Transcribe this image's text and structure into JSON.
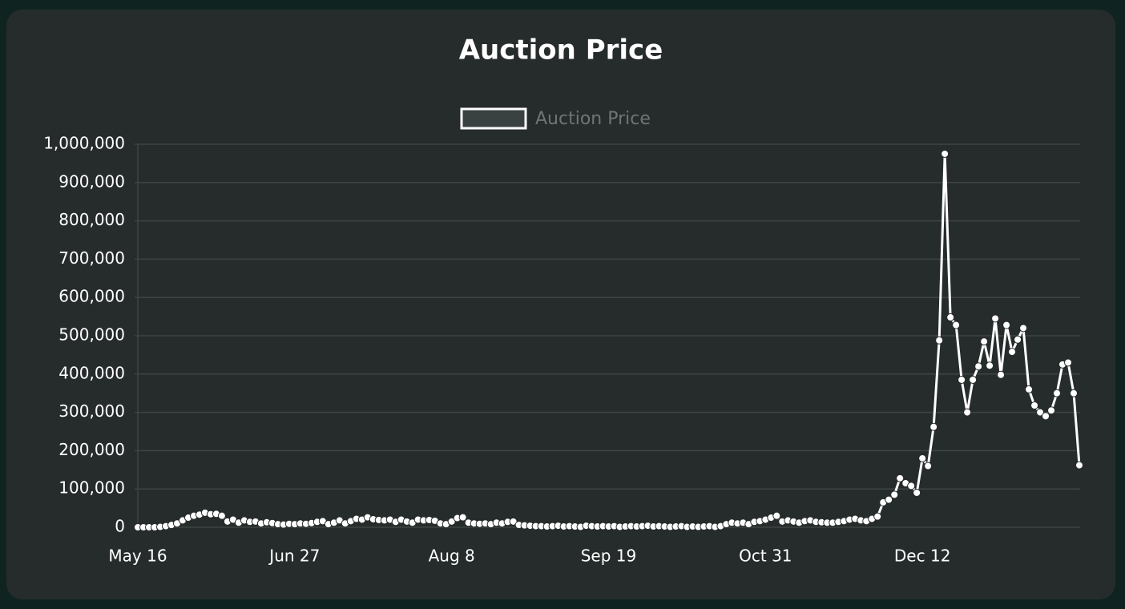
{
  "chart_data": {
    "type": "line",
    "title": "Auction Price",
    "categories": [
      "May 16",
      null,
      null,
      null,
      null,
      null,
      null,
      null,
      null,
      null,
      null,
      null,
      null,
      null,
      null,
      null,
      null,
      null,
      null,
      null,
      null,
      null,
      null,
      null,
      null,
      null,
      null,
      null,
      "Jun 27",
      null,
      null,
      null,
      null,
      null,
      null,
      null,
      null,
      null,
      null,
      null,
      null,
      null,
      null,
      null,
      null,
      null,
      null,
      null,
      null,
      null,
      null,
      null,
      null,
      null,
      null,
      null,
      "Aug 8",
      null,
      null,
      null,
      null,
      null,
      null,
      null,
      null,
      null,
      null,
      null,
      null,
      null,
      null,
      null,
      null,
      null,
      null,
      null,
      null,
      null,
      null,
      null,
      null,
      null,
      null,
      null,
      "Sep 19",
      null,
      null,
      null,
      null,
      null,
      null,
      null,
      null,
      null,
      null,
      null,
      null,
      null,
      null,
      null,
      null,
      null,
      null,
      null,
      null,
      null,
      null,
      null,
      null,
      null,
      null,
      null,
      "Oct 31",
      null,
      null,
      null,
      null,
      null,
      null,
      null,
      null,
      null,
      null,
      null,
      null,
      null,
      null,
      null,
      null,
      null,
      null,
      null,
      null,
      null,
      null,
      null,
      null,
      null,
      null,
      null,
      "Dec 12",
      null,
      null,
      null,
      null,
      null,
      null,
      null,
      null,
      null,
      null,
      null,
      null,
      null,
      null,
      null,
      null,
      null,
      null,
      null,
      null,
      null,
      null,
      null,
      null,
      null,
      null,
      null,
      null
    ],
    "series": [
      {
        "name": "Auction Price",
        "color": "#ffffff",
        "values": [
          0,
          0,
          0,
          0,
          1000,
          3000,
          6000,
          10000,
          18000,
          25000,
          30000,
          33000,
          38000,
          34000,
          35000,
          30000,
          15000,
          20000,
          12000,
          18000,
          14000,
          15000,
          10000,
          13000,
          11000,
          8000,
          7000,
          9000,
          8000,
          10000,
          9000,
          11000,
          14000,
          16000,
          8000,
          12000,
          18000,
          10000,
          16000,
          22000,
          20000,
          26000,
          21000,
          19000,
          18000,
          20000,
          14000,
          20000,
          15000,
          12000,
          20000,
          18000,
          19000,
          17000,
          10000,
          8000,
          15000,
          24000,
          26000,
          12000,
          10000,
          9000,
          10000,
          8000,
          12000,
          10000,
          14000,
          15000,
          6000,
          5000,
          4000,
          3000,
          3000,
          2000,
          3000,
          4000,
          2000,
          3000,
          2000,
          1000,
          4000,
          3000,
          2000,
          3000,
          2000,
          3000,
          1000,
          2000,
          3000,
          2000,
          3000,
          4000,
          2000,
          3000,
          2000,
          1000,
          2000,
          3000,
          1000,
          2000,
          1000,
          2000,
          3000,
          1000,
          3000,
          8000,
          12000,
          10000,
          12000,
          8000,
          14000,
          16000,
          20000,
          25000,
          30000,
          15000,
          18000,
          15000,
          12000,
          16000,
          18000,
          14000,
          13000,
          12000,
          12000,
          14000,
          16000,
          20000,
          22000,
          18000,
          16000,
          22000,
          28000,
          65000,
          72000,
          85000,
          128000,
          115000,
          108000,
          90000,
          180000,
          160000,
          262000,
          488000,
          975000,
          548000,
          528000,
          385000,
          300000,
          385000,
          420000,
          485000,
          422000,
          545000,
          398000,
          528000,
          458000,
          490000,
          520000,
          360000,
          318000,
          300000,
          290000,
          305000,
          350000,
          425000,
          430000,
          350000,
          162000
        ]
      }
    ],
    "ylim": [
      0,
      1000000
    ],
    "yticks": [
      0,
      {
        "value": 100000,
        "label": "100,000"
      },
      {
        "value": 200000,
        "label": "200,000"
      },
      {
        "value": 300000,
        "label": "300,000"
      },
      {
        "value": 400000,
        "label": "400,000"
      },
      {
        "value": 500000,
        "label": "500,000"
      },
      {
        "value": 600000,
        "label": "600,000"
      },
      {
        "value": 700000,
        "label": "700,000"
      },
      {
        "value": 800000,
        "label": "800,000"
      },
      {
        "value": 900000,
        "label": "900,000"
      },
      {
        "value": 1000000,
        "label": "1,000,000"
      }
    ],
    "grid": true,
    "legend": "top"
  }
}
